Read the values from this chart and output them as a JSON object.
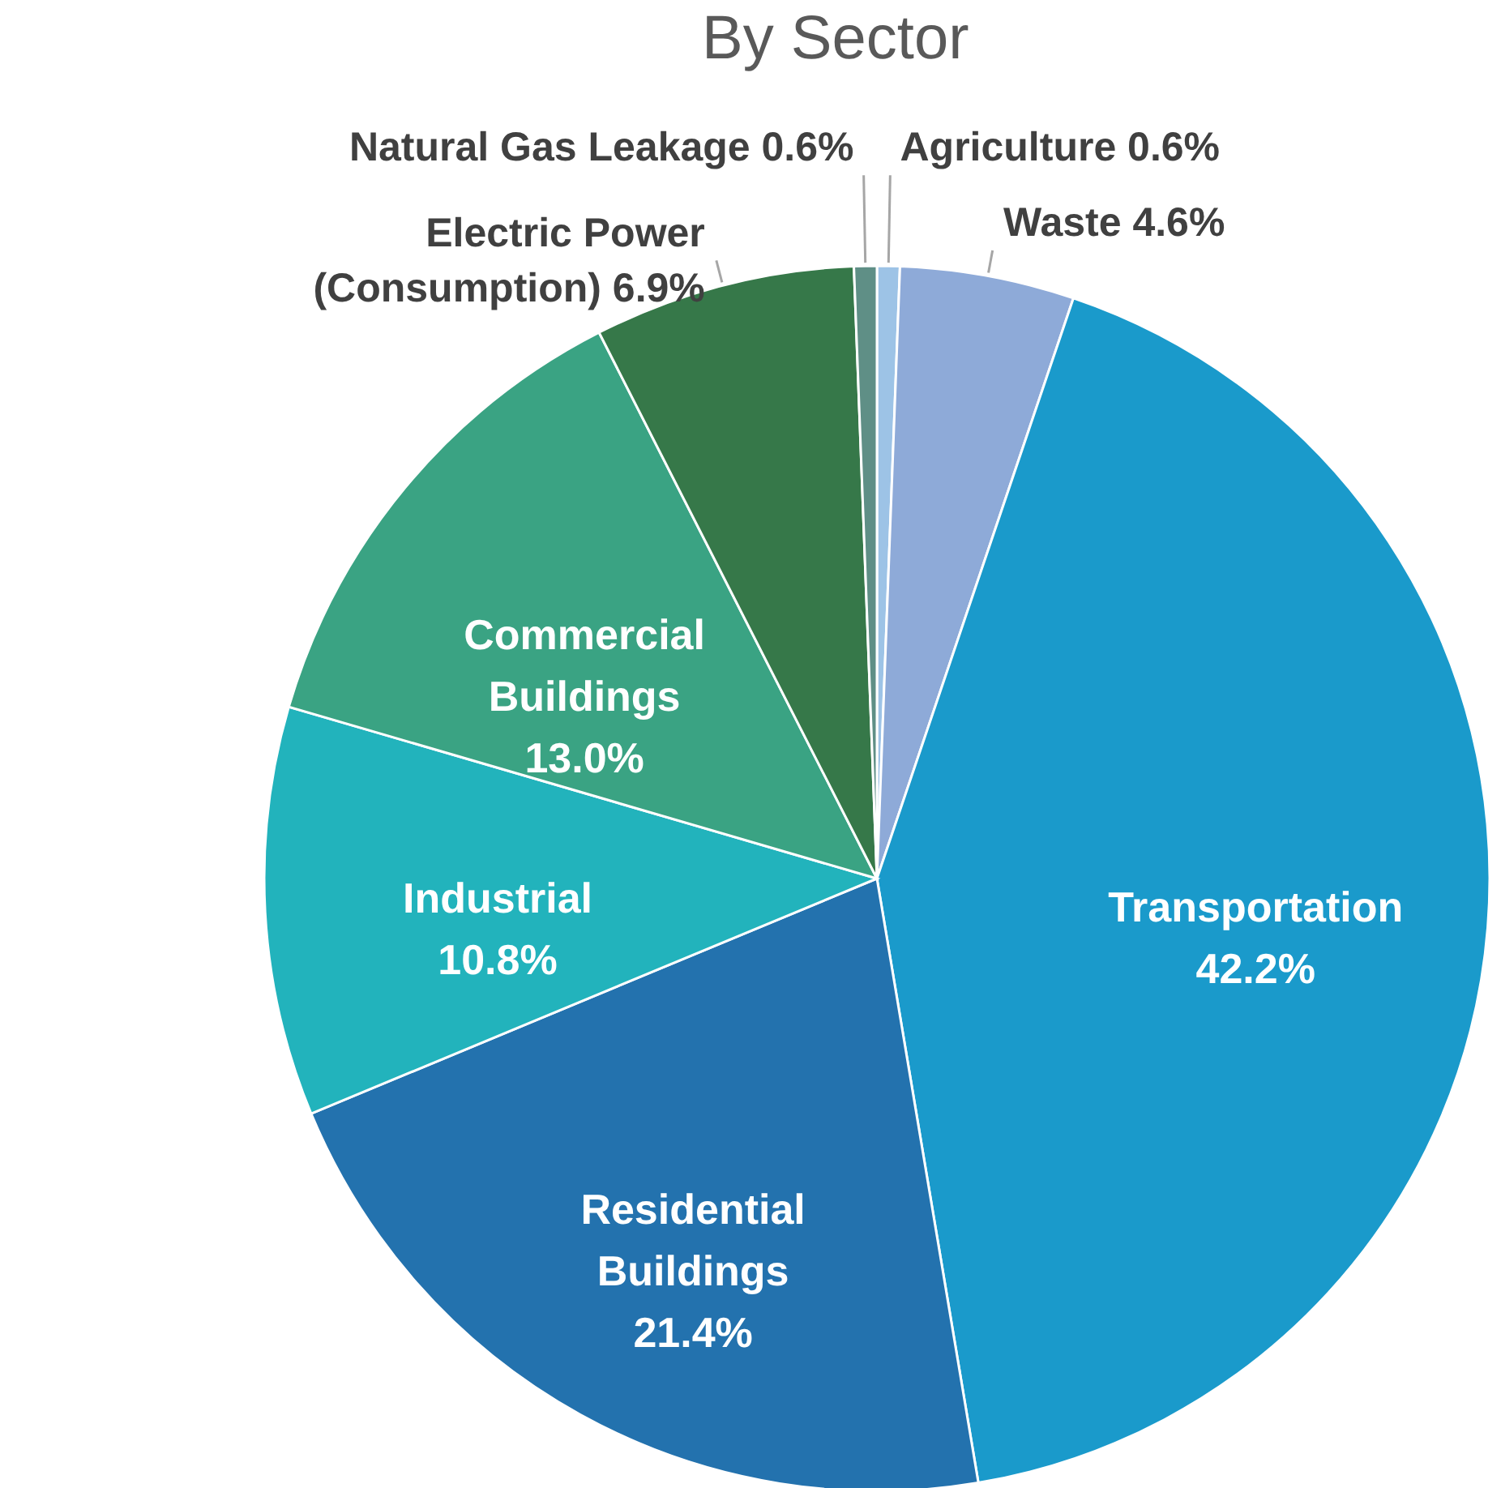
{
  "chart_data": {
    "type": "pie",
    "title": "By Sector",
    "categories": [
      "Agriculture",
      "Waste",
      "Transportation",
      "Residential Buildings",
      "Industrial",
      "Commercial Buildings",
      "Electric Power (Consumption)",
      "Natural Gas Leakage"
    ],
    "values": [
      0.6,
      4.6,
      42.2,
      21.4,
      10.8,
      13.0,
      6.9,
      0.6
    ],
    "value_labels": [
      "0.6%",
      "4.6%",
      "42.2%",
      "21.4%",
      "10.8%",
      "13.0%",
      "6.9%",
      "0.6%"
    ],
    "colors": [
      "#9dc3e6",
      "#8eaad8",
      "#1a9acb",
      "#2372ae",
      "#22b3bc",
      "#3aa383",
      "#367849",
      "#5f8f86"
    ],
    "legend": false
  }
}
